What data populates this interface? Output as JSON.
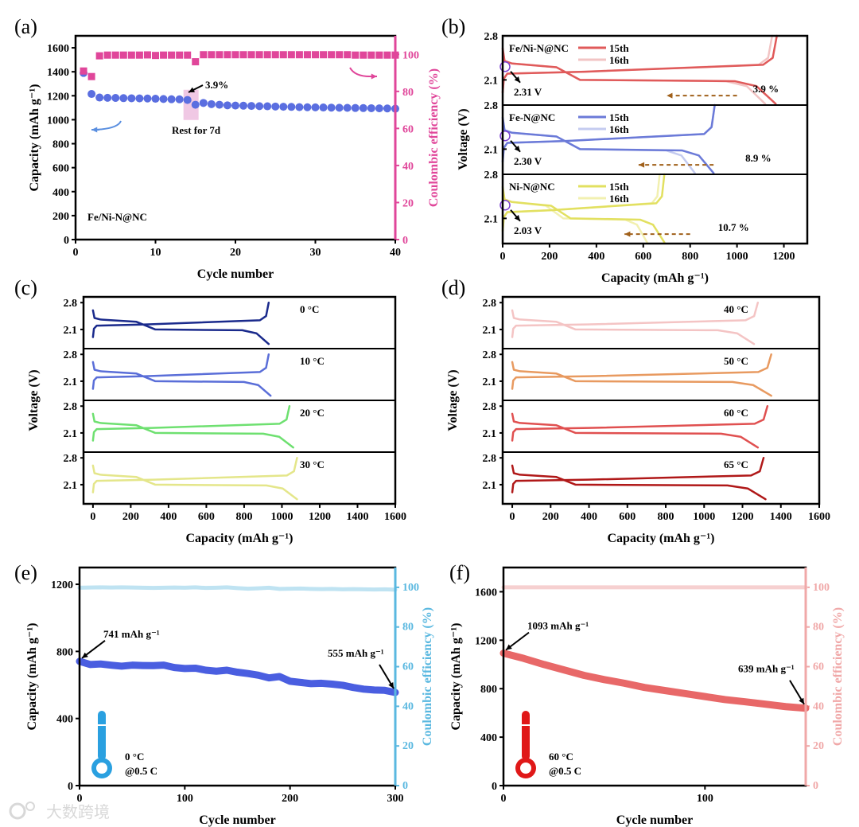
{
  "watermark": "大数跨境",
  "chart_data": [
    {
      "id": "a",
      "panel_label": "(a)",
      "type": "scatter",
      "xlabel": "Cycle number",
      "ylabel": "Capacity (mAh g⁻¹)",
      "y2label": "Coulombic efficiency (%)",
      "xlim": [
        0,
        40
      ],
      "ylim": [
        0,
        1700
      ],
      "y2lim": [
        0,
        110
      ],
      "xticks": [
        0,
        10,
        20,
        30,
        40
      ],
      "yticks": [
        0,
        200,
        400,
        600,
        800,
        1000,
        1200,
        1400,
        1600
      ],
      "y2ticks": [
        0,
        20,
        40,
        60,
        80,
        100
      ],
      "sample_label": "Fe/Ni-N@NC",
      "annotations": {
        "drop": "3.9%",
        "rest": "Rest for 7d"
      },
      "colors": {
        "capacity": "#5a6ee0",
        "ce": "#e0469a"
      },
      "x": [
        1,
        2,
        3,
        4,
        5,
        6,
        7,
        8,
        9,
        10,
        11,
        12,
        13,
        14,
        15,
        16,
        17,
        18,
        19,
        20,
        21,
        22,
        23,
        24,
        25,
        26,
        27,
        28,
        29,
        30,
        31,
        32,
        33,
        34,
        35,
        36,
        37,
        38,
        39,
        40
      ],
      "series": [
        {
          "name": "Capacity",
          "axis": "left",
          "values": [
            1390,
            1215,
            1185,
            1183,
            1182,
            1180,
            1179,
            1178,
            1177,
            1175,
            1173,
            1171,
            1170,
            1165,
            1125,
            1140,
            1130,
            1125,
            1120,
            1118,
            1117,
            1115,
            1113,
            1112,
            1110,
            1108,
            1107,
            1105,
            1104,
            1103,
            1102,
            1101,
            1100,
            1099,
            1098,
            1097,
            1096,
            1095,
            1094,
            1092
          ]
        },
        {
          "name": "Coulombic efficiency",
          "axis": "right",
          "values": [
            91,
            88,
            99.2,
            99.6,
            99.6,
            99.6,
            99.6,
            99.6,
            99.7,
            99.4,
            99.6,
            99.6,
            99.6,
            99.6,
            96,
            99.8,
            99.8,
            99.8,
            99.8,
            99.8,
            99.8,
            99.8,
            99.8,
            99.8,
            99.8,
            99.8,
            99.8,
            99.8,
            99.8,
            99.8,
            99.8,
            99.8,
            99.8,
            99.8,
            99.6,
            99.6,
            99.6,
            99.6,
            99.6,
            99.6
          ]
        }
      ]
    },
    {
      "id": "b",
      "panel_label": "(b)",
      "type": "line",
      "xlabel": "Capacity (mAh g⁻¹)",
      "ylabel": "Voltage (V)",
      "xlim": [
        0,
        1300
      ],
      "ylim": [
        1.7,
        2.8
      ],
      "xticks": [
        0,
        200,
        400,
        600,
        800,
        1000,
        1200
      ],
      "yticks": [
        2.1,
        2.8
      ],
      "rows": [
        {
          "sample": "Fe/Ni-N@NC",
          "voltage_label": "2.31 V",
          "fade_label": "3.9 %",
          "curves": [
            {
              "name": "15th",
              "color": "#e05a5a",
              "charge_capacity": 1170,
              "discharge_capacity": 1165
            },
            {
              "name": "16th",
              "color": "#f2c4c4",
              "charge_capacity": 1150,
              "discharge_capacity": 1120
            }
          ]
        },
        {
          "sample": "Fe-N@NC",
          "voltage_label": "2.30 V",
          "fade_label": "8.9 %",
          "curves": [
            {
              "name": "15th",
              "color": "#6b7ad8",
              "charge_capacity": 905,
              "discharge_capacity": 900
            },
            {
              "name": "16th",
              "color": "#c4cbf0",
              "charge_capacity": 905,
              "discharge_capacity": 820
            }
          ]
        },
        {
          "sample": "Ni-N@NC",
          "voltage_label": "2.03 V",
          "fade_label": "10.7 %",
          "curves": [
            {
              "name": "15th",
              "color": "#e2e060",
              "charge_capacity": 690,
              "discharge_capacity": 690
            },
            {
              "name": "16th",
              "color": "#f2f0b0",
              "charge_capacity": 670,
              "discharge_capacity": 616
            }
          ]
        }
      ]
    },
    {
      "id": "c",
      "panel_label": "(c)",
      "type": "line",
      "xlabel": "Capacity (mAh g⁻¹)",
      "ylabel": "Voltage (V)",
      "xlim": [
        -50,
        1600
      ],
      "ylim": [
        1.6,
        2.95
      ],
      "xticks": [
        0,
        200,
        400,
        600,
        800,
        1000,
        1200,
        1400,
        1600
      ],
      "yticks": [
        2.1,
        2.8
      ],
      "rows": [
        {
          "temperature": "0 °C",
          "color": "#1a2a8c",
          "charge_capacity": 930,
          "discharge_capacity": 930
        },
        {
          "temperature": "10 °C",
          "color": "#5a6ed8",
          "charge_capacity": 930,
          "discharge_capacity": 940
        },
        {
          "temperature": "20 °C",
          "color": "#6ee070",
          "charge_capacity": 1040,
          "discharge_capacity": 1060
        },
        {
          "temperature": "30 °C",
          "color": "#e4e68a",
          "charge_capacity": 1080,
          "discharge_capacity": 1080
        }
      ]
    },
    {
      "id": "d",
      "panel_label": "(d)",
      "type": "line",
      "xlabel": "Capacity (mAh g⁻¹)",
      "ylabel": "Voltage (V)",
      "xlim": [
        -50,
        1600
      ],
      "ylim": [
        1.6,
        2.95
      ],
      "xticks": [
        0,
        200,
        400,
        600,
        800,
        1000,
        1200,
        1400,
        1600
      ],
      "yticks": [
        2.1,
        2.8
      ],
      "rows": [
        {
          "temperature": "40 °C",
          "color": "#f4c4c4",
          "charge_capacity": 1280,
          "discharge_capacity": 1260
        },
        {
          "temperature": "50 °C",
          "color": "#e89a60",
          "charge_capacity": 1350,
          "discharge_capacity": 1350
        },
        {
          "temperature": "60 °C",
          "color": "#e05050",
          "charge_capacity": 1330,
          "discharge_capacity": 1280
        },
        {
          "temperature": "65 °C",
          "color": "#b01818",
          "charge_capacity": 1310,
          "discharge_capacity": 1320
        }
      ]
    },
    {
      "id": "e",
      "panel_label": "(e)",
      "type": "line",
      "xlabel": "Cycle number",
      "ylabel": "Capacity (mAh g⁻¹)",
      "y2label": "Coulombic efficiency (%)",
      "xlim": [
        0,
        300
      ],
      "ylim": [
        0,
        1300
      ],
      "y2lim": [
        0,
        110
      ],
      "xticks": [
        0,
        100,
        200,
        300
      ],
      "yticks": [
        0,
        400,
        800,
        1200
      ],
      "y2ticks": [
        0,
        20,
        40,
        60,
        80,
        100
      ],
      "colors": {
        "capacity": "#4a5ee0",
        "ce": "#5ab8e0",
        "ce_line": "#bfe3f2"
      },
      "start_label": "741 mAh g⁻¹",
      "end_label": "555 mAh g⁻¹",
      "condition": [
        "0 °C",
        "@0.5 C"
      ],
      "x": [
        0,
        10,
        20,
        30,
        40,
        50,
        60,
        70,
        80,
        90,
        100,
        110,
        120,
        130,
        140,
        150,
        160,
        170,
        180,
        190,
        200,
        210,
        220,
        230,
        240,
        250,
        260,
        270,
        280,
        290,
        300
      ],
      "series": [
        {
          "name": "Capacity",
          "axis": "left",
          "values": [
            741,
            722,
            725,
            718,
            712,
            718,
            716,
            715,
            718,
            704,
            698,
            700,
            688,
            682,
            688,
            676,
            668,
            658,
            642,
            650,
            622,
            615,
            608,
            610,
            605,
            598,
            585,
            575,
            570,
            568,
            555
          ]
        },
        {
          "name": "Coulombic efficiency",
          "axis": "right",
          "values": [
            99.8,
            99.9,
            100,
            99.9,
            100,
            99.9,
            99.8,
            99.7,
            99.8,
            99.9,
            99.8,
            100,
            99.7,
            99.8,
            100,
            99.6,
            99.3,
            99.5,
            99.8,
            99.2,
            99.3,
            99.4,
            99.2,
            99.1,
            99.2,
            99.0,
            99.1,
            99.0,
            98.9,
            99.0,
            98.8
          ]
        }
      ]
    },
    {
      "id": "f",
      "panel_label": "(f)",
      "type": "line",
      "xlabel": "Cycle number",
      "ylabel": "Capacity (mAh g⁻¹)",
      "y2label": "Coulombic efficiency (%)",
      "xlim": [
        0,
        150
      ],
      "ylim": [
        0,
        1800
      ],
      "y2lim": [
        0,
        110
      ],
      "xticks": [
        0,
        100
      ],
      "yticks": [
        0,
        400,
        800,
        1200,
        1600
      ],
      "y2ticks": [
        0,
        20,
        40,
        60,
        80,
        100
      ],
      "colors": {
        "capacity": "#e86868",
        "ce": "#f0a8a8",
        "ce_line": "#f6d0d0"
      },
      "start_label": "1093 mAh g⁻¹",
      "end_label": "639 mAh g⁻¹",
      "condition": [
        "60 °C",
        "@0.5 C"
      ],
      "x": [
        0,
        10,
        20,
        30,
        40,
        50,
        60,
        70,
        80,
        90,
        100,
        110,
        120,
        130,
        140,
        150
      ],
      "series": [
        {
          "name": "Capacity",
          "axis": "left",
          "values": [
            1093,
            1050,
            1000,
            955,
            910,
            875,
            845,
            810,
            785,
            760,
            735,
            710,
            692,
            672,
            652,
            639
          ]
        },
        {
          "name": "Coulombic efficiency",
          "axis": "right",
          "values": [
            100,
            100,
            100,
            100,
            100,
            100,
            100,
            100,
            100,
            100,
            100,
            100,
            100,
            100,
            100,
            100
          ]
        }
      ]
    }
  ]
}
